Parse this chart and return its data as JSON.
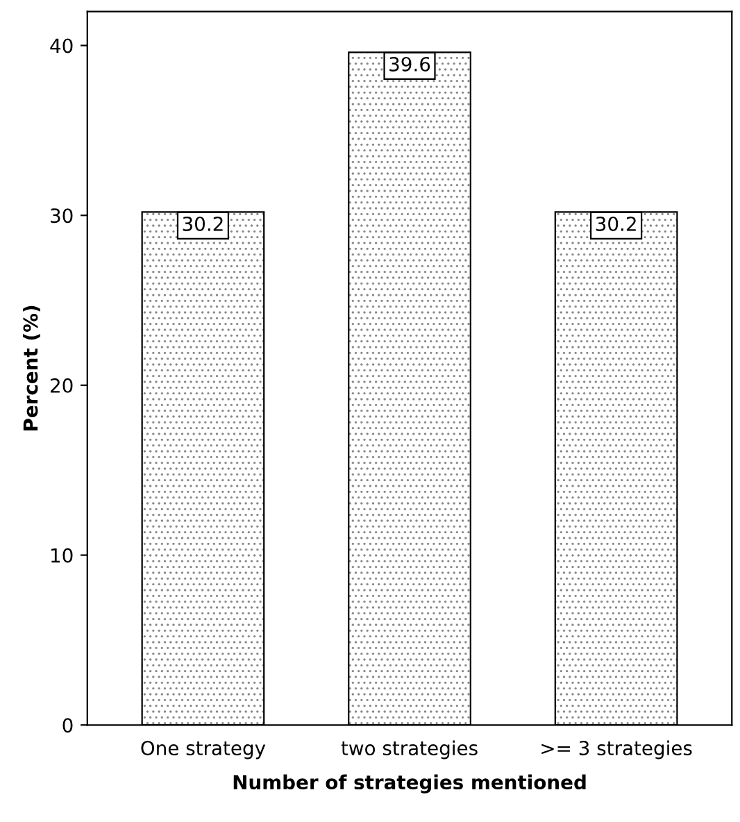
{
  "chart_data": {
    "type": "bar",
    "xlabel": "Number of strategies mentioned",
    "ylabel": "Percent (%)",
    "categories": [
      "One strategy",
      "two strategies",
      ">= 3 strategies"
    ],
    "values": [
      30.2,
      39.6,
      30.2
    ],
    "color": "#ffffff",
    "ylim": [
      0,
      42
    ],
    "yticks": [
      0,
      10,
      20,
      30,
      40
    ],
    "grid": false,
    "data_labels": true,
    "legend": false
  }
}
